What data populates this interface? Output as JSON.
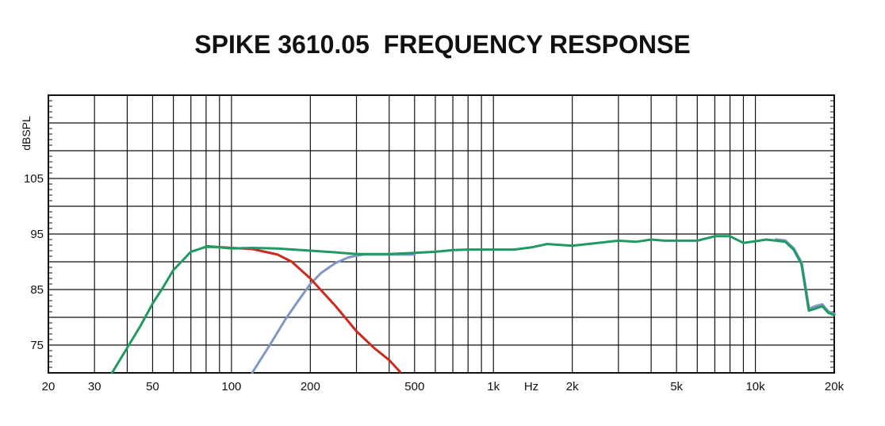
{
  "chart_data": {
    "type": "line",
    "title": "SPIKE 3610.05  FREQUENCY RESPONSE",
    "ylabel": "dBSPL",
    "xunit": "Hz",
    "xscale": "log",
    "xlim": [
      20,
      20000
    ],
    "ylim": [
      70,
      120
    ],
    "grid": true,
    "legend": "none",
    "xticks": [
      {
        "value": 20,
        "label": "20"
      },
      {
        "value": 30,
        "label": "30"
      },
      {
        "value": 50,
        "label": "50"
      },
      {
        "value": 100,
        "label": "100"
      },
      {
        "value": 200,
        "label": "200"
      },
      {
        "value": 500,
        "label": "500"
      },
      {
        "value": 1000,
        "label": "1k"
      },
      {
        "value": 2000,
        "label": "2k"
      },
      {
        "value": 5000,
        "label": "5k"
      },
      {
        "value": 10000,
        "label": "10k"
      },
      {
        "value": 20000,
        "label": "20k"
      }
    ],
    "yticks": [
      {
        "value": 75,
        "label": "75"
      },
      {
        "value": 85,
        "label": "85"
      },
      {
        "value": 95,
        "label": "95"
      },
      {
        "value": 105,
        "label": "105"
      }
    ],
    "series": [
      {
        "color": "#cc2a1e",
        "x": [
          80,
          100,
          120,
          150,
          170,
          200,
          250,
          300,
          350,
          400,
          440
        ],
        "y": [
          92.8,
          92.5,
          92.3,
          91.3,
          90.0,
          87.0,
          82.0,
          77.5,
          74.5,
          72.3,
          70.2
        ]
      },
      {
        "color": "#8097c4",
        "x": [
          120,
          140,
          160,
          180,
          200,
          220,
          250,
          280,
          300,
          320,
          400,
          500
        ],
        "y": [
          70.0,
          75.0,
          79.5,
          83.0,
          86.0,
          88.0,
          89.8,
          90.8,
          91.1,
          91.3,
          91.3,
          91.3
        ],
        "tail_x": [
          12000,
          13000,
          14000,
          15000,
          16000,
          17000,
          18000,
          19000,
          20000
        ],
        "tail_y": [
          94.0,
          93.8,
          92.4,
          89.8,
          81.5,
          82.0,
          82.3,
          81.0,
          80.6
        ]
      },
      {
        "color": "#1f9a63",
        "x": [
          35,
          40,
          45,
          50,
          55,
          60,
          70,
          80,
          90,
          100,
          120,
          150,
          200,
          250,
          300,
          350,
          400,
          500,
          600,
          700,
          800,
          1000,
          1200,
          1400,
          1600,
          2000,
          2500,
          3000,
          3500,
          4000,
          4500,
          5000,
          6000,
          7000,
          8000,
          9000,
          10000,
          11000,
          12000,
          13000,
          14000,
          15000,
          16000,
          17000,
          18000,
          19000,
          20000
        ],
        "y": [
          70.0,
          74.5,
          78.5,
          82.5,
          85.5,
          88.5,
          91.8,
          92.7,
          92.6,
          92.4,
          92.5,
          92.4,
          92.0,
          91.7,
          91.4,
          91.4,
          91.4,
          91.6,
          91.8,
          92.1,
          92.2,
          92.2,
          92.2,
          92.6,
          93.2,
          92.9,
          93.4,
          93.8,
          93.6,
          94.0,
          93.8,
          93.8,
          93.8,
          94.6,
          94.6,
          93.4,
          93.7,
          94.0,
          93.8,
          93.6,
          92.2,
          89.6,
          81.2,
          81.6,
          82.0,
          80.8,
          80.4
        ]
      }
    ]
  }
}
